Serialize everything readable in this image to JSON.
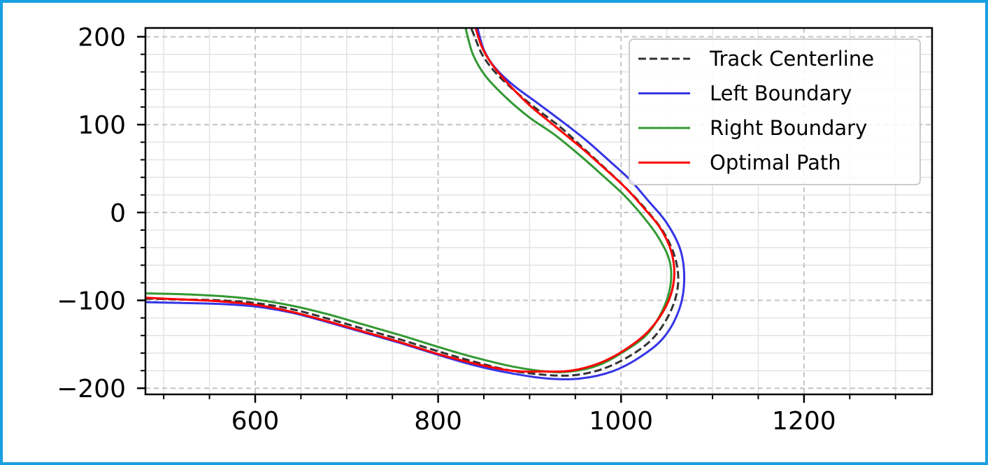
{
  "chart_data": {
    "type": "line",
    "title": "",
    "xlabel": "",
    "ylabel": "",
    "xlim": [
      480,
      1340
    ],
    "ylim": [
      -207,
      210
    ],
    "x_ticks": [
      {
        "value": 600,
        "label": "600"
      },
      {
        "value": 800,
        "label": "800"
      },
      {
        "value": 1000,
        "label": "1000"
      },
      {
        "value": 1200,
        "label": "1200"
      }
    ],
    "y_ticks": [
      {
        "value": 200,
        "label": "200"
      },
      {
        "value": 100,
        "label": "100"
      },
      {
        "value": 0,
        "label": "0"
      },
      {
        "value": -100,
        "label": "−100"
      },
      {
        "value": -200,
        "label": "−200"
      }
    ],
    "x_minor_step": 50,
    "y_minor_step": 20,
    "grid": true,
    "legend_position": "top-right",
    "series": [
      {
        "name": "Track Centerline",
        "color": "#333333",
        "dashed": true,
        "points": [
          [
            480,
            -98
          ],
          [
            520,
            -99
          ],
          [
            560,
            -100
          ],
          [
            600,
            -103
          ],
          [
            640,
            -110
          ],
          [
            680,
            -121
          ],
          [
            720,
            -133
          ],
          [
            760,
            -145
          ],
          [
            800,
            -158
          ],
          [
            840,
            -170
          ],
          [
            880,
            -180
          ],
          [
            920,
            -185
          ],
          [
            950,
            -185
          ],
          [
            980,
            -178
          ],
          [
            1010,
            -163
          ],
          [
            1035,
            -143
          ],
          [
            1053,
            -115
          ],
          [
            1062,
            -85
          ],
          [
            1060,
            -55
          ],
          [
            1048,
            -25
          ],
          [
            1030,
            0
          ],
          [
            1010,
            23
          ],
          [
            985,
            48
          ],
          [
            960,
            72
          ],
          [
            935,
            96
          ],
          [
            905,
            120
          ],
          [
            882,
            140
          ],
          [
            862,
            160
          ],
          [
            848,
            180
          ],
          [
            840,
            200
          ],
          [
            836,
            210
          ]
        ]
      },
      {
        "name": "Left Boundary",
        "color": "#3535e6",
        "dashed": false,
        "points": [
          [
            480,
            -102
          ],
          [
            520,
            -103
          ],
          [
            560,
            -104
          ],
          [
            600,
            -107
          ],
          [
            640,
            -114
          ],
          [
            680,
            -125
          ],
          [
            720,
            -137
          ],
          [
            760,
            -149
          ],
          [
            800,
            -162
          ],
          [
            840,
            -174
          ],
          [
            880,
            -183
          ],
          [
            920,
            -189
          ],
          [
            955,
            -189
          ],
          [
            990,
            -181
          ],
          [
            1020,
            -165
          ],
          [
            1046,
            -143
          ],
          [
            1063,
            -112
          ],
          [
            1069,
            -78
          ],
          [
            1065,
            -43
          ],
          [
            1050,
            -12
          ],
          [
            1030,
            13
          ],
          [
            1010,
            37
          ],
          [
            988,
            58
          ],
          [
            962,
            82
          ],
          [
            935,
            104
          ],
          [
            908,
            125
          ],
          [
            882,
            145
          ],
          [
            862,
            165
          ],
          [
            850,
            185
          ],
          [
            843,
            210
          ]
        ]
      },
      {
        "name": "Right Boundary",
        "color": "#339933",
        "dashed": false,
        "points": [
          [
            480,
            -92
          ],
          [
            520,
            -93
          ],
          [
            560,
            -95
          ],
          [
            600,
            -99
          ],
          [
            640,
            -106
          ],
          [
            680,
            -116
          ],
          [
            720,
            -128
          ],
          [
            760,
            -140
          ],
          [
            800,
            -153
          ],
          [
            840,
            -165
          ],
          [
            880,
            -175
          ],
          [
            918,
            -181
          ],
          [
            945,
            -181
          ],
          [
            975,
            -174
          ],
          [
            1002,
            -159
          ],
          [
            1028,
            -139
          ],
          [
            1045,
            -112
          ],
          [
            1054,
            -83
          ],
          [
            1053,
            -55
          ],
          [
            1040,
            -27
          ],
          [
            1022,
            -2
          ],
          [
            1003,
            20
          ],
          [
            980,
            42
          ],
          [
            955,
            65
          ],
          [
            928,
            88
          ],
          [
            900,
            108
          ],
          [
            875,
            130
          ],
          [
            852,
            155
          ],
          [
            838,
            180
          ],
          [
            830,
            210
          ]
        ]
      },
      {
        "name": "Optimal Path",
        "color": "#ff0000",
        "dashed": false,
        "points": [
          [
            480,
            -97
          ],
          [
            520,
            -99
          ],
          [
            560,
            -101
          ],
          [
            600,
            -105
          ],
          [
            640,
            -113
          ],
          [
            680,
            -124
          ],
          [
            720,
            -136
          ],
          [
            760,
            -148
          ],
          [
            800,
            -161
          ],
          [
            840,
            -172
          ],
          [
            880,
            -180
          ],
          [
            915,
            -181
          ],
          [
            945,
            -180
          ],
          [
            975,
            -172
          ],
          [
            1003,
            -157
          ],
          [
            1030,
            -135
          ],
          [
            1050,
            -105
          ],
          [
            1058,
            -75
          ],
          [
            1055,
            -45
          ],
          [
            1043,
            -18
          ],
          [
            1025,
            5
          ],
          [
            1005,
            28
          ],
          [
            980,
            52
          ],
          [
            955,
            75
          ],
          [
            928,
            98
          ],
          [
            900,
            122
          ],
          [
            878,
            145
          ],
          [
            860,
            167
          ],
          [
            848,
            188
          ],
          [
            841,
            210
          ]
        ]
      }
    ]
  }
}
